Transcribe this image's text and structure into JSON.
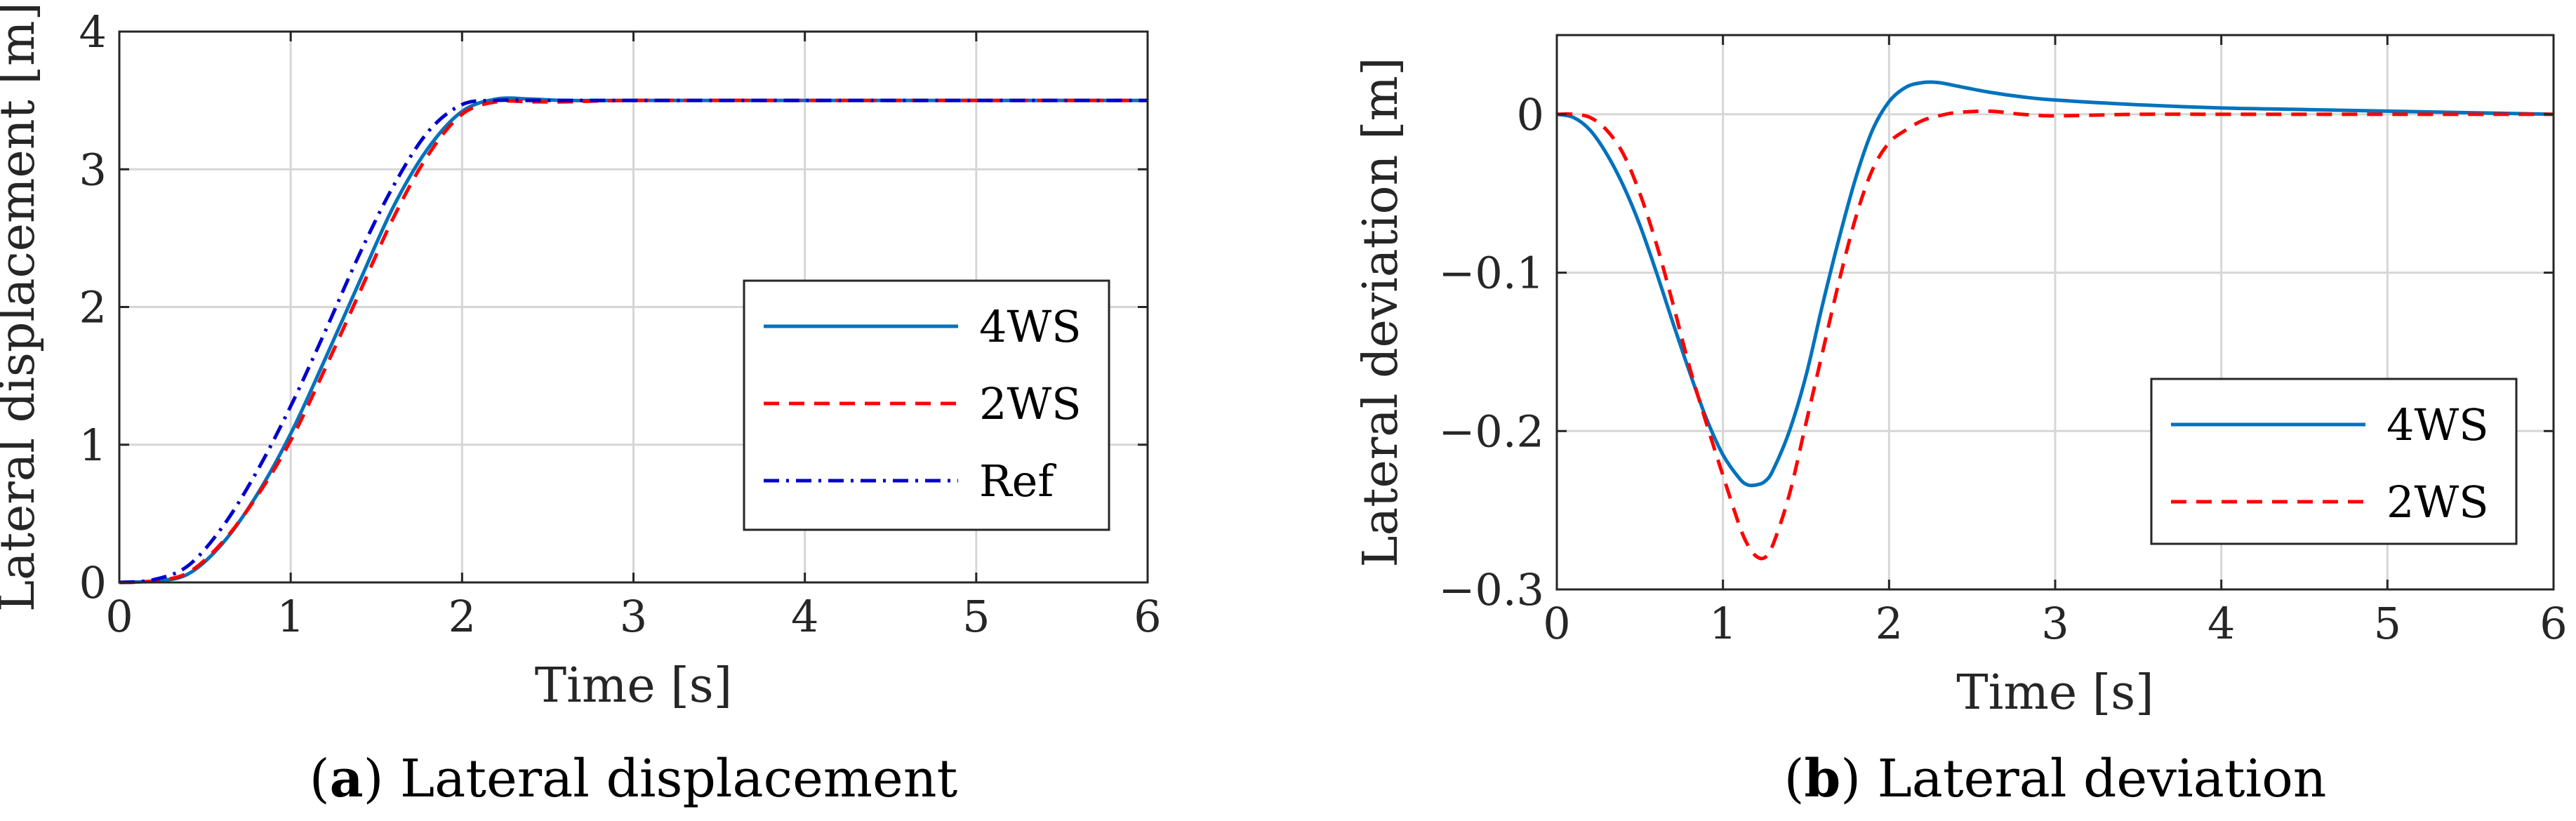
{
  "colors": {
    "ws4": "#0072BD",
    "ws2": "#FF0000",
    "ref": "#0000CC"
  },
  "chart_data": [
    {
      "type": "line",
      "caption_letter": "a",
      "caption_text": " Lateral displacement",
      "xlabel": "Time [s]",
      "ylabel": "Lateral displacement [m]",
      "xlim": [
        0,
        6
      ],
      "ylim": [
        0,
        4
      ],
      "xticks": [
        "0",
        "1",
        "2",
        "3",
        "4",
        "5",
        "6"
      ],
      "yticks": [
        "0",
        "1",
        "2",
        "3",
        "4"
      ],
      "xtick_values": [
        0,
        1,
        2,
        3,
        4,
        5,
        6
      ],
      "ytick_values": [
        0,
        1,
        2,
        3,
        4
      ],
      "grid": true,
      "legend_position": "center-right",
      "series": [
        {
          "name": "4WS",
          "style": "solid",
          "x": [
            0,
            0.2,
            0.4,
            0.6,
            0.8,
            1.0,
            1.2,
            1.4,
            1.6,
            1.8,
            2.0,
            2.2,
            2.4,
            2.6,
            3,
            4,
            5,
            6
          ],
          "y": [
            0,
            0.01,
            0.06,
            0.28,
            0.63,
            1.08,
            1.62,
            2.18,
            2.73,
            3.15,
            3.42,
            3.51,
            3.51,
            3.5,
            3.5,
            3.5,
            3.5,
            3.5
          ]
        },
        {
          "name": "2WS",
          "style": "dashed",
          "x": [
            0,
            0.2,
            0.4,
            0.6,
            0.8,
            1.0,
            1.2,
            1.4,
            1.6,
            1.8,
            2.0,
            2.2,
            2.4,
            2.6,
            3,
            4,
            5,
            6
          ],
          "y": [
            0,
            0.01,
            0.07,
            0.29,
            0.62,
            1.03,
            1.55,
            2.1,
            2.65,
            3.1,
            3.4,
            3.49,
            3.49,
            3.49,
            3.5,
            3.5,
            3.5,
            3.5
          ]
        },
        {
          "name": "Ref",
          "style": "dashdot",
          "x": [
            0,
            0.2,
            0.4,
            0.6,
            0.8,
            1.0,
            1.2,
            1.4,
            1.6,
            1.8,
            2.0,
            2.2,
            2.4,
            2.6,
            3,
            4,
            5,
            6
          ],
          "y": [
            0,
            0.02,
            0.12,
            0.4,
            0.8,
            1.28,
            1.82,
            2.38,
            2.88,
            3.27,
            3.47,
            3.5,
            3.5,
            3.5,
            3.5,
            3.5,
            3.5,
            3.5
          ]
        }
      ]
    },
    {
      "type": "line",
      "caption_letter": "b",
      "caption_text": " Lateral deviation",
      "xlabel": "Time [s]",
      "ylabel": "Lateral deviation [m]",
      "xlim": [
        0,
        6
      ],
      "ylim": [
        -0.3,
        0.05
      ],
      "xticks": [
        "0",
        "1",
        "2",
        "3",
        "4",
        "5",
        "6"
      ],
      "yticks": [
        "0",
        "−0.1",
        "−0.2",
        "−0.3"
      ],
      "xtick_values": [
        0,
        1,
        2,
        3,
        4,
        5,
        6
      ],
      "ytick_values": [
        0,
        -0.1,
        -0.2,
        -0.3
      ],
      "grid": true,
      "legend_position": "bottom-right",
      "series": [
        {
          "name": "4WS",
          "style": "solid",
          "x": [
            0,
            0.1,
            0.2,
            0.3,
            0.4,
            0.5,
            0.6,
            0.7,
            0.8,
            0.9,
            1.0,
            1.1,
            1.15,
            1.2,
            1.25,
            1.3,
            1.4,
            1.5,
            1.6,
            1.7,
            1.8,
            1.9,
            2.0,
            2.1,
            2.2,
            2.3,
            2.4,
            2.6,
            2.8,
            3.0,
            3.5,
            4,
            4.5,
            5,
            5.5,
            6
          ],
          "y": [
            0,
            -0.002,
            -0.01,
            -0.025,
            -0.045,
            -0.07,
            -0.1,
            -0.132,
            -0.163,
            -0.192,
            -0.215,
            -0.23,
            -0.234,
            -0.234,
            -0.232,
            -0.225,
            -0.2,
            -0.165,
            -0.12,
            -0.078,
            -0.04,
            -0.01,
            0.008,
            0.017,
            0.02,
            0.02,
            0.018,
            0.014,
            0.011,
            0.009,
            0.006,
            0.004,
            0.003,
            0.002,
            0.001,
            0.0
          ]
        },
        {
          "name": "2WS",
          "style": "dashed",
          "x": [
            0,
            0.1,
            0.2,
            0.3,
            0.4,
            0.5,
            0.6,
            0.7,
            0.8,
            0.9,
            1.0,
            1.1,
            1.15,
            1.2,
            1.25,
            1.3,
            1.4,
            1.5,
            1.6,
            1.7,
            1.8,
            1.9,
            2.0,
            2.1,
            2.2,
            2.3,
            2.4,
            2.6,
            2.8,
            3.0,
            3.5,
            4,
            4.5,
            5,
            5.5,
            6
          ],
          "y": [
            0,
            0,
            -0.002,
            -0.01,
            -0.025,
            -0.05,
            -0.082,
            -0.12,
            -0.16,
            -0.195,
            -0.228,
            -0.26,
            -0.272,
            -0.279,
            -0.28,
            -0.272,
            -0.24,
            -0.195,
            -0.15,
            -0.105,
            -0.065,
            -0.035,
            -0.018,
            -0.01,
            -0.004,
            -0.001,
            0.001,
            0.002,
            0.0,
            -0.001,
            0.0,
            0.0,
            0.0,
            0.0,
            0.0,
            0.0
          ]
        }
      ]
    }
  ]
}
